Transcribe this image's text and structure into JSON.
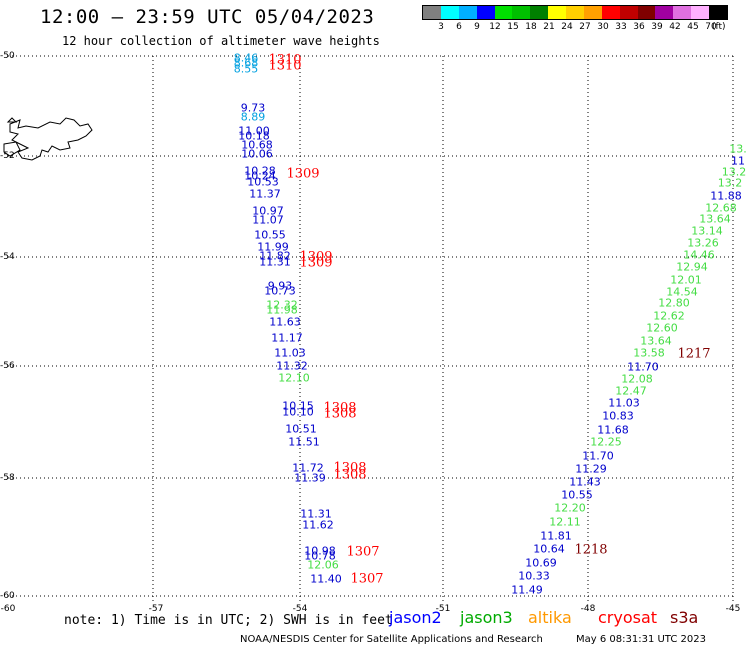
{
  "header": {
    "title": "12:00 – 23:59 UTC 05/04/2023",
    "subtitle": "12 hour collection of altimeter wave heights"
  },
  "color_scale": {
    "unit_label": "(ft)",
    "colors": [
      "#808080",
      "#00ffff",
      "#00b0ff",
      "#0000ff",
      "#00e000",
      "#00c000",
      "#008000",
      "#ffff00",
      "#ffd000",
      "#ffa000",
      "#ff0000",
      "#c00000",
      "#800000",
      "#a000a0",
      "#e070e0",
      "#ffb0ff",
      "#000000"
    ],
    "ticks": [
      "3",
      "6",
      "9",
      "12",
      "15",
      "18",
      "21",
      "24",
      "27",
      "30",
      "33",
      "36",
      "39",
      "42",
      "45",
      "70"
    ]
  },
  "axes": {
    "lat_labels": [
      "-50",
      "-52",
      "-54",
      "-56",
      "-58",
      "-60"
    ],
    "lon_labels": [
      "-60",
      "-57",
      "-54",
      "-51",
      "-48",
      "-45"
    ]
  },
  "observations": [
    {
      "v": "8.46",
      "c": "#00a0e0"
    },
    {
      "v": "8.68",
      "c": "#00a0e0"
    },
    {
      "v": "8.55",
      "c": "#00a0e0"
    },
    {
      "v": "9.73",
      "c": "#0000cc"
    },
    {
      "v": "8.89",
      "c": "#00a0e0"
    },
    {
      "v": "11.00",
      "c": "#0000cc"
    },
    {
      "v": "10.18",
      "c": "#0000cc"
    },
    {
      "v": "10.68",
      "c": "#0000cc"
    },
    {
      "v": "10.06",
      "c": "#0000cc"
    },
    {
      "v": "10.28",
      "c": "#0000cc"
    },
    {
      "v": "10.24",
      "c": "#0000cc"
    },
    {
      "v": "10.53",
      "c": "#0000cc"
    },
    {
      "v": "11.37",
      "c": "#0000cc"
    },
    {
      "v": "10.97",
      "c": "#0000cc"
    },
    {
      "v": "11.07",
      "c": "#0000cc"
    },
    {
      "v": "10.55",
      "c": "#0000cc"
    },
    {
      "v": "11.99",
      "c": "#0000cc"
    },
    {
      "v": "11.82",
      "c": "#0000cc"
    },
    {
      "v": "11.31",
      "c": "#0000cc"
    },
    {
      "v": "9.93",
      "c": "#0000cc"
    },
    {
      "v": "10.73",
      "c": "#0000cc"
    },
    {
      "v": "12.32",
      "c": "#44dd44"
    },
    {
      "v": "11.98",
      "c": "#44dd44"
    },
    {
      "v": "11.63",
      "c": "#0000cc"
    },
    {
      "v": "11.17",
      "c": "#0000cc"
    },
    {
      "v": "11.03",
      "c": "#0000cc"
    },
    {
      "v": "11.32",
      "c": "#0000cc"
    },
    {
      "v": "12.10",
      "c": "#44dd44"
    },
    {
      "v": "10.15",
      "c": "#0000cc"
    },
    {
      "v": "10.10",
      "c": "#0000cc"
    },
    {
      "v": "10.51",
      "c": "#0000cc"
    },
    {
      "v": "11.51",
      "c": "#0000cc"
    },
    {
      "v": "11.72",
      "c": "#0000cc"
    },
    {
      "v": "11.39",
      "c": "#0000cc"
    },
    {
      "v": "11.31",
      "c": "#0000cc"
    },
    {
      "v": "11.62",
      "c": "#0000cc"
    },
    {
      "v": "10.98",
      "c": "#0000cc"
    },
    {
      "v": "10.78",
      "c": "#0000cc"
    },
    {
      "v": "12.06",
      "c": "#44dd44"
    },
    {
      "v": "11.40",
      "c": "#0000cc"
    },
    {
      "v": "13.",
      "c": "#44dd44"
    },
    {
      "v": "11",
      "c": "#0000cc"
    },
    {
      "v": "13.2",
      "c": "#44dd44"
    },
    {
      "v": "13.2",
      "c": "#44dd44"
    },
    {
      "v": "11.88",
      "c": "#0000cc"
    },
    {
      "v": "12.68",
      "c": "#44dd44"
    },
    {
      "v": "13.64",
      "c": "#44dd44"
    },
    {
      "v": "13.14",
      "c": "#44dd44"
    },
    {
      "v": "13.26",
      "c": "#44dd44"
    },
    {
      "v": "14.46",
      "c": "#44dd44"
    },
    {
      "v": "12.94",
      "c": "#44dd44"
    },
    {
      "v": "12.01",
      "c": "#44dd44"
    },
    {
      "v": "14.54",
      "c": "#44dd44"
    },
    {
      "v": "12.80",
      "c": "#44dd44"
    },
    {
      "v": "12.62",
      "c": "#44dd44"
    },
    {
      "v": "12.60",
      "c": "#44dd44"
    },
    {
      "v": "13.64",
      "c": "#44dd44"
    },
    {
      "v": "13.58",
      "c": "#44dd44"
    },
    {
      "v": "11.70",
      "c": "#0000cc"
    },
    {
      "v": "12.08",
      "c": "#44dd44"
    },
    {
      "v": "12.47",
      "c": "#44dd44"
    },
    {
      "v": "11.03",
      "c": "#0000cc"
    },
    {
      "v": "10.83",
      "c": "#0000cc"
    },
    {
      "v": "11.68",
      "c": "#0000cc"
    },
    {
      "v": "12.25",
      "c": "#44dd44"
    },
    {
      "v": "11.70",
      "c": "#0000cc"
    },
    {
      "v": "11.29",
      "c": "#0000cc"
    },
    {
      "v": "11.43",
      "c": "#0000cc"
    },
    {
      "v": "10.55",
      "c": "#0000cc"
    },
    {
      "v": "12.20",
      "c": "#44dd44"
    },
    {
      "v": "12.11",
      "c": "#44dd44"
    },
    {
      "v": "11.81",
      "c": "#0000cc"
    },
    {
      "v": "10.64",
      "c": "#0000cc"
    },
    {
      "v": "10.69",
      "c": "#0000cc"
    },
    {
      "v": "10.33",
      "c": "#0000cc"
    },
    {
      "v": "11.49",
      "c": "#0000cc"
    }
  ],
  "pass_times": [
    {
      "v": "1310",
      "c": "#ff0000"
    },
    {
      "v": "1310",
      "c": "#ff0000"
    },
    {
      "v": "1309",
      "c": "#ff0000"
    },
    {
      "v": "1309",
      "c": "#ff0000"
    },
    {
      "v": "1309",
      "c": "#ff0000"
    },
    {
      "v": "1308",
      "c": "#ff0000"
    },
    {
      "v": "1308",
      "c": "#ff0000"
    },
    {
      "v": "1308",
      "c": "#ff0000"
    },
    {
      "v": "1308",
      "c": "#ff0000"
    },
    {
      "v": "1307",
      "c": "#ff0000"
    },
    {
      "v": "1307",
      "c": "#ff0000"
    },
    {
      "v": "1217",
      "c": "#800000"
    },
    {
      "v": "1218",
      "c": "#800000"
    }
  ],
  "footer": {
    "note": "note: 1) Time is in UTC; 2) SWH is in feet",
    "satellites": [
      {
        "name": "jason2",
        "color": "#0000ff"
      },
      {
        "name": "jason3",
        "color": "#00aa00"
      },
      {
        "name": "altika",
        "color": "#ff9900"
      },
      {
        "name": "cryosat",
        "color": "#ff0000"
      },
      {
        "name": "s3a",
        "color": "#800000"
      }
    ],
    "credit": "NOAA/NESDIS Center for Satellite Applications and Research",
    "timestamp": "May  6 08:31:31 UTC 2023"
  }
}
